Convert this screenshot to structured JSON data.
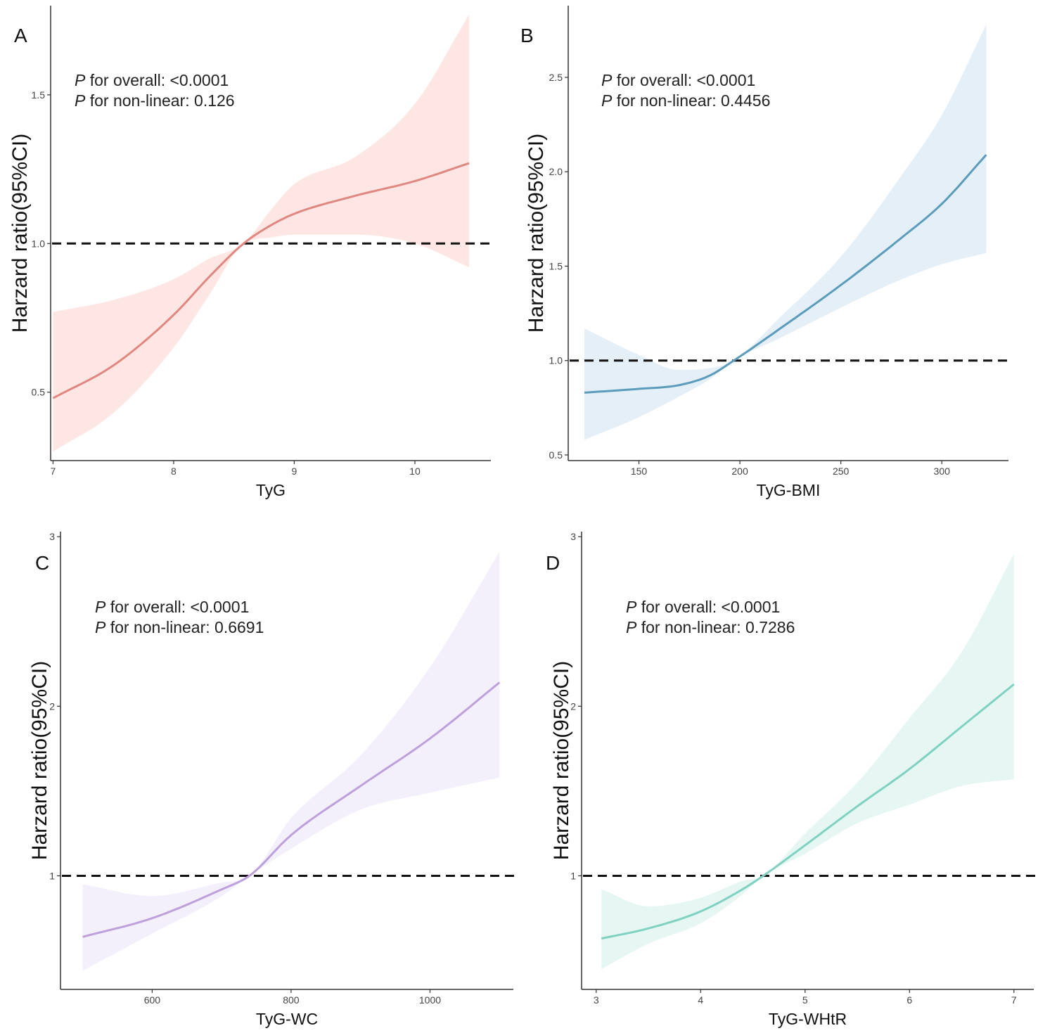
{
  "figure": {
    "y_axis_label": "Harzard ratio(95%CI)"
  },
  "chart_data": [
    {
      "type": "line",
      "panel": "A",
      "xlabel": "TyG",
      "ylabel": "Harzard ratio(95%CI)",
      "xlim": [
        6.98,
        10.63
      ],
      "ylim": [
        0.27,
        1.8
      ],
      "xticks": [
        7,
        8,
        9,
        10
      ],
      "xtick_labels": [
        "7",
        "8",
        "9",
        "10"
      ],
      "yticks": [
        0.5,
        1.0,
        1.5
      ],
      "ytick_labels": [
        "0.5",
        "1.0",
        "1.5"
      ],
      "reference_line": 1.0,
      "p_overall_label": "for overall: <0.0001",
      "p_nonlinear_label": "for non-linear: 0.126",
      "color": "#e08880",
      "band_color": "#fde6e4",
      "x": [
        7.0,
        7.5,
        8.0,
        8.3,
        8.58,
        8.8,
        9.0,
        9.5,
        10.0,
        10.45
      ],
      "hr": [
        0.48,
        0.59,
        0.76,
        0.89,
        1.0,
        1.06,
        1.1,
        1.16,
        1.21,
        1.27
      ],
      "lower": [
        0.3,
        0.43,
        0.65,
        0.83,
        1.0,
        1.02,
        1.03,
        1.03,
        1.0,
        0.92
      ],
      "upper": [
        0.77,
        0.81,
        0.88,
        0.95,
        1.0,
        1.11,
        1.2,
        1.29,
        1.47,
        1.77
      ]
    },
    {
      "type": "line",
      "panel": "B",
      "xlabel": "TyG-BMI",
      "ylabel": "Harzard ratio(95%CI)",
      "xlim": [
        115,
        333
      ],
      "ylim": [
        0.47,
        2.88
      ],
      "xticks": [
        150,
        200,
        250,
        300
      ],
      "xtick_labels": [
        "150",
        "200",
        "250",
        "300"
      ],
      "yticks": [
        0.5,
        1.0,
        1.5,
        2.0,
        2.5
      ],
      "ytick_labels": [
        "0.5",
        "1.0",
        "1.5",
        "2.0",
        "2.5"
      ],
      "reference_line": 1.0,
      "p_overall_label": "for overall: <0.0001",
      "p_nonlinear_label": "for non-linear: 0.4456",
      "color": "#5b9cbd",
      "band_color": "#e4eff7",
      "x": [
        123,
        150,
        170,
        185,
        197,
        220,
        250,
        280,
        300,
        322
      ],
      "hr": [
        0.83,
        0.85,
        0.87,
        0.92,
        1.0,
        1.17,
        1.4,
        1.65,
        1.83,
        2.09
      ],
      "lower": [
        0.58,
        0.7,
        0.81,
        0.9,
        1.0,
        1.12,
        1.28,
        1.43,
        1.51,
        1.57
      ],
      "upper": [
        1.17,
        1.03,
        0.95,
        0.96,
        1.0,
        1.23,
        1.55,
        1.98,
        2.3,
        2.78
      ]
    },
    {
      "type": "line",
      "panel": "C",
      "xlabel": "TyG-WC",
      "ylabel": "Harzard ratio(95%CI)",
      "xlim": [
        468,
        1120
      ],
      "ylim": [
        0.33,
        3.03
      ],
      "xticks": [
        600,
        800,
        1000
      ],
      "xtick_labels": [
        "600",
        "800",
        "1000"
      ],
      "yticks": [
        1,
        2,
        3
      ],
      "ytick_labels": [
        "1",
        "2",
        "3"
      ],
      "reference_line": 1.0,
      "p_overall_label": "for overall: <0.0001",
      "p_nonlinear_label": "for non-linear: 0.6691",
      "color": "#bda0dc",
      "band_color": "#f3effb",
      "x": [
        500,
        600,
        700,
        740,
        800,
        900,
        1000,
        1100
      ],
      "hr": [
        0.64,
        0.75,
        0.92,
        1.0,
        1.24,
        1.53,
        1.81,
        2.14
      ],
      "lower": [
        0.44,
        0.66,
        0.88,
        1.0,
        1.16,
        1.39,
        1.49,
        1.58
      ],
      "upper": [
        0.95,
        0.88,
        0.96,
        1.0,
        1.34,
        1.71,
        2.23,
        2.91
      ]
    },
    {
      "type": "line",
      "panel": "D",
      "xlabel": "TyG-WHtR",
      "ylabel": "Harzard ratio(95%CI)",
      "xlim": [
        2.86,
        7.19
      ],
      "ylim": [
        0.33,
        3.03
      ],
      "xticks": [
        3,
        4,
        5,
        6,
        7
      ],
      "xtick_labels": [
        "3",
        "4",
        "5",
        "6",
        "7"
      ],
      "yticks": [
        1,
        2,
        3
      ],
      "ytick_labels": [
        "1",
        "2",
        "3"
      ],
      "reference_line": 1.0,
      "p_overall_label": "for overall: <0.0001",
      "p_nonlinear_label": "for non-linear: 0.7286",
      "color": "#7fd1c2",
      "band_color": "#e6f6f3",
      "x": [
        3.05,
        3.5,
        4.0,
        4.4,
        4.6,
        5.0,
        5.5,
        6.0,
        6.5,
        7.0
      ],
      "hr": [
        0.63,
        0.69,
        0.79,
        0.92,
        1.0,
        1.18,
        1.41,
        1.63,
        1.88,
        2.13
      ],
      "lower": [
        0.45,
        0.6,
        0.72,
        0.89,
        1.0,
        1.13,
        1.31,
        1.42,
        1.53,
        1.57
      ],
      "upper": [
        0.92,
        0.82,
        0.87,
        0.97,
        1.0,
        1.25,
        1.55,
        1.93,
        2.32,
        2.9
      ]
    }
  ]
}
